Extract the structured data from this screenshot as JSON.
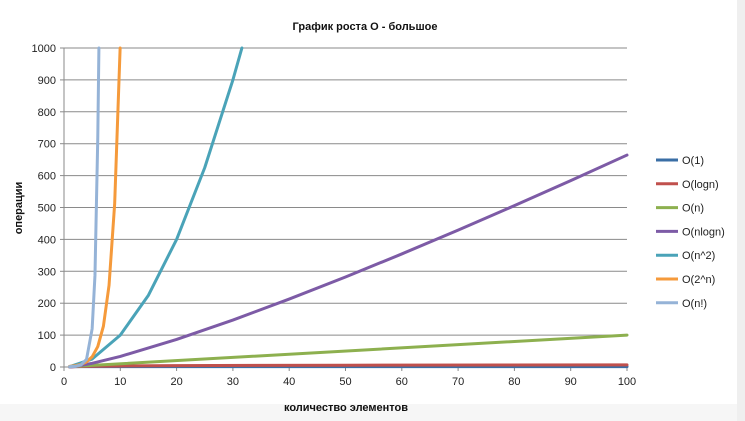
{
  "chart_data": {
    "type": "line",
    "title": "График роста O - большое",
    "xlabel": "количество элементов",
    "ylabel": "операции",
    "xlim": [
      0,
      100
    ],
    "ylim": [
      0,
      1000
    ],
    "x_ticks": [
      "0",
      "10",
      "20",
      "30",
      "40",
      "50",
      "60",
      "70",
      "80",
      "90",
      "100"
    ],
    "y_ticks": [
      "0",
      "100",
      "200",
      "300",
      "400",
      "500",
      "600",
      "700",
      "800",
      "900",
      "1000"
    ],
    "grid": "horizontal",
    "legend_position": "right",
    "series": [
      {
        "name": "O(1)",
        "color": "#3a6ea5",
        "x": [
          1,
          100
        ],
        "values": [
          1,
          1
        ]
      },
      {
        "name": "O(logn)",
        "color": "#c0504d",
        "x": [
          1,
          2,
          5,
          10,
          20,
          50,
          100
        ],
        "values": [
          0,
          1,
          2.32,
          3.32,
          4.32,
          5.64,
          6.64
        ]
      },
      {
        "name": "O(n)",
        "color": "#8db04f",
        "x": [
          1,
          100
        ],
        "values": [
          1,
          100
        ]
      },
      {
        "name": "O(nlogn)",
        "color": "#7d5ba6",
        "x": [
          1,
          2,
          5,
          10,
          20,
          30,
          40,
          50,
          60,
          70,
          80,
          90,
          100
        ],
        "values": [
          0,
          2,
          11.6,
          33.2,
          86.4,
          147.2,
          212.9,
          282.2,
          354.4,
          429.1,
          505.8,
          584.3,
          664.4
        ]
      },
      {
        "name": "O(n^2)",
        "color": "#4aa3b8",
        "x": [
          1,
          5,
          10,
          15,
          20,
          25,
          30,
          31.6
        ],
        "values": [
          1,
          25,
          100,
          225,
          400,
          625,
          900,
          1000
        ]
      },
      {
        "name": "O(2^n)",
        "color": "#f59a3b",
        "x": [
          1,
          2,
          3,
          4,
          5,
          6,
          7,
          8,
          9,
          9.97
        ],
        "values": [
          2,
          4,
          8,
          16,
          32,
          64,
          128,
          256,
          512,
          1000
        ]
      },
      {
        "name": "O(n!)",
        "color": "#95b3d7",
        "x": [
          1,
          2,
          3,
          4,
          5,
          5.5,
          6,
          6.2
        ],
        "values": [
          1,
          2,
          6,
          24,
          120,
          287,
          720,
          1000
        ]
      }
    ]
  }
}
